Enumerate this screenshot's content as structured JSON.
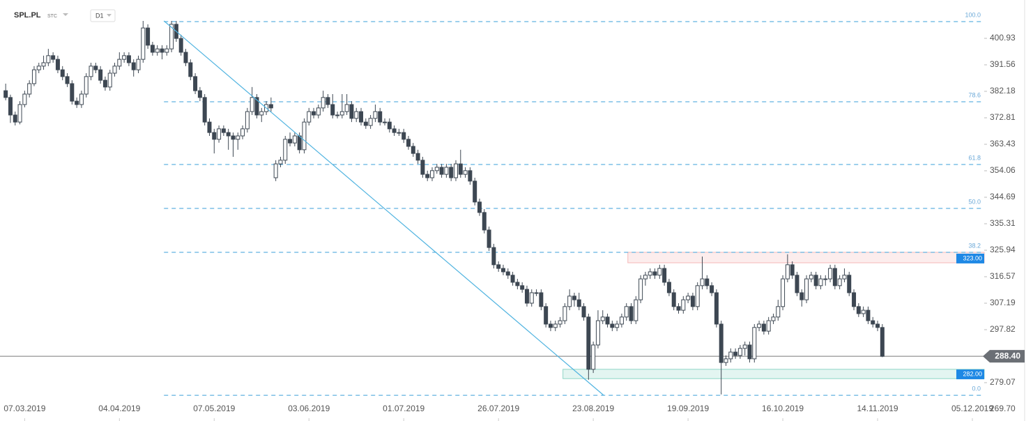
{
  "chart_data": {
    "type": "candlestick",
    "header": {
      "symbol": "SPL.PL",
      "market": "STC",
      "interval": "D1"
    },
    "up_color": "#ffffff",
    "down_color": "#3d4752",
    "xlim": [
      -1.2,
      206.5
    ],
    "xticks": [
      {
        "value": 4,
        "label": "07.03.2019"
      },
      {
        "value": 24,
        "label": "04.04.2019"
      },
      {
        "value": 44,
        "label": "07.05.2019"
      },
      {
        "value": 64,
        "label": "03.06.2019"
      },
      {
        "value": 84,
        "label": "01.07.2019"
      },
      {
        "value": 104,
        "label": "26.07.2019"
      },
      {
        "value": 124,
        "label": "23.08.2019"
      },
      {
        "value": 144,
        "label": "19.09.2019"
      },
      {
        "value": 164,
        "label": "16.10.2019"
      },
      {
        "value": 184,
        "label": "14.11.2019"
      },
      {
        "value": 204,
        "label": "05.12.2019"
      }
    ],
    "ylim": [
      265.5,
      414.5
    ],
    "yticks": [
      400.93,
      391.56,
      382.18,
      372.81,
      363.43,
      354.06,
      344.69,
      335.31,
      325.94,
      316.57,
      307.19,
      297.82,
      279.07,
      {
        "value": 269.7,
        "label": "269.70"
      }
    ],
    "current_price": {
      "value": 288.4,
      "label": "288.40"
    },
    "fib_levels": [
      {
        "label": "100.0",
        "value": 406.85
      },
      {
        "label": "78.6",
        "value": 378.48
      },
      {
        "label": "61.8",
        "value": 356.28
      },
      {
        "label": "50.0",
        "value": 340.73
      },
      {
        "label": "38.2",
        "value": 325.19
      },
      {
        "label": "0.0",
        "value": 274.6
      }
    ],
    "fib_x_start": 33.4,
    "zones": [
      {
        "label": "323.00",
        "value": 323,
        "top": 325.2,
        "bottom": 321.5,
        "x_start": 131.3,
        "color": "#f4b8b8"
      },
      {
        "label": "282.00",
        "value": 282,
        "top": 283.8,
        "bottom": 280.5,
        "x_start": 117.6,
        "color": "#8fd6c6"
      }
    ],
    "trendline": {
      "x": [
        33.4,
        126.2
      ],
      "y": [
        407.1,
        274.6
      ],
      "color": "#4fb3e0"
    },
    "candles": [
      [
        382.4,
        384.9,
        379.0,
        380.0
      ],
      [
        380.0,
        381.0,
        371.0,
        373.8
      ],
      [
        373.8,
        375.0,
        370.1,
        371.3
      ],
      [
        371.3,
        378.7,
        370.5,
        377.5
      ],
      [
        377.5,
        382.4,
        376.5,
        381.2
      ],
      [
        381.2,
        386.1,
        380.0,
        384.9
      ],
      [
        384.9,
        391.1,
        384.0,
        389.8
      ],
      [
        389.8,
        392.3,
        388.6,
        391.1
      ],
      [
        391.1,
        394.8,
        389.8,
        392.3
      ],
      [
        392.3,
        397.2,
        391.1,
        394.8
      ],
      [
        394.8,
        396.0,
        392.3,
        393.5
      ],
      [
        393.5,
        394.8,
        388.6,
        389.8
      ],
      [
        389.8,
        391.1,
        386.1,
        387.4
      ],
      [
        387.4,
        388.6,
        383.7,
        384.9
      ],
      [
        384.9,
        386.1,
        377.5,
        378.7
      ],
      [
        378.7,
        380.0,
        376.3,
        377.5
      ],
      [
        377.5,
        382.4,
        376.3,
        381.2
      ],
      [
        381.2,
        388.6,
        380.0,
        387.4
      ],
      [
        387.4,
        392.3,
        386.1,
        391.1
      ],
      [
        391.1,
        392.3,
        388.6,
        389.8
      ],
      [
        389.8,
        391.1,
        384.9,
        386.1
      ],
      [
        386.1,
        387.4,
        382.4,
        383.7
      ],
      [
        383.7,
        389.8,
        382.4,
        388.6
      ],
      [
        388.6,
        392.3,
        387.4,
        391.1
      ],
      [
        391.1,
        396.0,
        389.8,
        393.5
      ],
      [
        393.5,
        396.0,
        392.3,
        394.8
      ],
      [
        394.8,
        396.0,
        391.1,
        392.3
      ],
      [
        392.3,
        393.5,
        387.4,
        389.8
      ],
      [
        389.8,
        394.8,
        388.6,
        393.5
      ],
      [
        393.5,
        407.1,
        392.3,
        404.6
      ],
      [
        404.6,
        405.9,
        397.2,
        398.5
      ],
      [
        398.5,
        399.7,
        394.8,
        396.0
      ],
      [
        396.0,
        398.5,
        394.8,
        397.2
      ],
      [
        397.2,
        398.5,
        393.5,
        396.0
      ],
      [
        396.0,
        398.5,
        394.8,
        397.2
      ],
      [
        397.2,
        407.1,
        396.0,
        405.9
      ],
      [
        405.9,
        407.1,
        399.7,
        400.9
      ],
      [
        400.9,
        402.2,
        394.8,
        396.0
      ],
      [
        396.0,
        397.2,
        391.1,
        392.3
      ],
      [
        392.3,
        393.5,
        386.1,
        387.4
      ],
      [
        387.4,
        388.6,
        381.2,
        382.4
      ],
      [
        382.4,
        383.7,
        378.7,
        380.0
      ],
      [
        380.0,
        381.2,
        370.1,
        371.3
      ],
      [
        371.3,
        372.6,
        366.4,
        367.6
      ],
      [
        367.6,
        368.9,
        360.2,
        365.2
      ],
      [
        365.2,
        370.1,
        364.0,
        368.9
      ],
      [
        368.9,
        370.1,
        366.4,
        367.6
      ],
      [
        367.6,
        368.9,
        361.5,
        366.4
      ],
      [
        366.4,
        367.6,
        359.0,
        365.2
      ],
      [
        365.2,
        367.6,
        361.5,
        366.4
      ],
      [
        366.4,
        370.1,
        365.2,
        368.9
      ],
      [
        368.9,
        376.3,
        367.6,
        375.0
      ],
      [
        375.0,
        383.7,
        373.8,
        380.0
      ],
      [
        380.0,
        381.2,
        372.6,
        373.8
      ],
      [
        373.8,
        376.3,
        371.3,
        375.0
      ],
      [
        375.0,
        378.7,
        373.8,
        377.5
      ],
      [
        377.5,
        380.0,
        375.0,
        376.3
      ],
      [
        351.6,
        357.8,
        350.4,
        356.5
      ],
      [
        356.5,
        359.0,
        355.3,
        357.8
      ],
      [
        357.8,
        366.4,
        356.5,
        365.2
      ],
      [
        365.2,
        367.6,
        362.7,
        363.9
      ],
      [
        363.9,
        367.6,
        362.7,
        366.4
      ],
      [
        366.4,
        367.6,
        360.2,
        361.5
      ],
      [
        361.5,
        372.6,
        360.2,
        371.3
      ],
      [
        371.3,
        376.3,
        370.1,
        375.0
      ],
      [
        375.0,
        376.3,
        372.6,
        373.8
      ],
      [
        373.8,
        377.5,
        372.6,
        376.3
      ],
      [
        376.3,
        382.4,
        375.0,
        380.0
      ],
      [
        380.0,
        381.2,
        376.3,
        377.5
      ],
      [
        377.5,
        381.2,
        372.6,
        373.8
      ],
      [
        373.8,
        375.0,
        372.6,
        373.8
      ],
      [
        373.8,
        381.2,
        372.6,
        375.0
      ],
      [
        375.0,
        381.2,
        373.8,
        377.5
      ],
      [
        377.5,
        378.7,
        371.3,
        372.6
      ],
      [
        372.6,
        376.3,
        371.3,
        375.0
      ],
      [
        375.0,
        376.3,
        370.1,
        371.3
      ],
      [
        371.3,
        372.6,
        368.9,
        370.1
      ],
      [
        370.1,
        373.8,
        368.9,
        372.6
      ],
      [
        372.6,
        377.5,
        371.3,
        375.0
      ],
      [
        375.0,
        376.3,
        370.1,
        371.3
      ],
      [
        371.3,
        372.6,
        370.1,
        371.3
      ],
      [
        371.3,
        372.6,
        367.6,
        368.9
      ],
      [
        368.9,
        370.1,
        366.4,
        367.6
      ],
      [
        367.6,
        368.9,
        366.4,
        367.6
      ],
      [
        367.6,
        368.9,
        363.9,
        365.2
      ],
      [
        365.2,
        366.4,
        361.5,
        362.7
      ],
      [
        362.7,
        363.9,
        359.0,
        360.2
      ],
      [
        360.2,
        361.5,
        356.5,
        357.8
      ],
      [
        357.8,
        359.0,
        351.6,
        352.8
      ],
      [
        352.8,
        354.1,
        350.4,
        351.6
      ],
      [
        351.6,
        355.3,
        350.4,
        354.1
      ],
      [
        354.1,
        356.5,
        353.0,
        355.3
      ],
      [
        355.3,
        356.5,
        351.6,
        352.8
      ],
      [
        352.8,
        356.5,
        351.6,
        355.3
      ],
      [
        355.3,
        356.5,
        350.4,
        351.6
      ],
      [
        351.6,
        357.8,
        350.4,
        356.5
      ],
      [
        356.5,
        361.5,
        351.6,
        352.8
      ],
      [
        352.8,
        355.3,
        351.6,
        354.1
      ],
      [
        354.1,
        355.3,
        349.1,
        350.4
      ],
      [
        350.4,
        351.6,
        341.8,
        343.0
      ],
      [
        343.0,
        344.2,
        338.1,
        339.3
      ],
      [
        339.3,
        340.5,
        331.9,
        333.1
      ],
      [
        333.1,
        334.3,
        325.7,
        326.9
      ],
      [
        326.9,
        328.2,
        319.5,
        320.8
      ],
      [
        320.8,
        322.0,
        318.3,
        319.5
      ],
      [
        319.5,
        320.8,
        317.1,
        318.3
      ],
      [
        318.3,
        319.5,
        315.8,
        317.1
      ],
      [
        317.1,
        318.3,
        313.4,
        314.6
      ],
      [
        314.6,
        315.8,
        312.1,
        313.4
      ],
      [
        313.4,
        314.6,
        310.9,
        312.1
      ],
      [
        312.1,
        313.4,
        306.0,
        307.2
      ],
      [
        307.2,
        312.1,
        306.0,
        310.9
      ],
      [
        310.9,
        312.1,
        309.7,
        310.9
      ],
      [
        310.9,
        312.1,
        304.7,
        306.0
      ],
      [
        306.0,
        307.2,
        298.6,
        299.8
      ],
      [
        299.8,
        301.0,
        297.3,
        298.6
      ],
      [
        298.6,
        301.0,
        297.3,
        299.8
      ],
      [
        299.8,
        302.3,
        298.6,
        301.0
      ],
      [
        301.0,
        307.2,
        299.8,
        306.0
      ],
      [
        306.0,
        312.1,
        304.7,
        309.7
      ],
      [
        309.7,
        310.9,
        306.0,
        308.4
      ],
      [
        308.4,
        310.9,
        304.7,
        306.0
      ],
      [
        306.0,
        307.2,
        301.0,
        302.3
      ],
      [
        302.3,
        303.5,
        280.1,
        283.8
      ],
      [
        283.8,
        293.6,
        282.5,
        292.4
      ],
      [
        292.4,
        304.7,
        291.2,
        301.0
      ],
      [
        301.0,
        304.7,
        299.8,
        302.3
      ],
      [
        302.3,
        303.5,
        298.6,
        299.8
      ],
      [
        299.8,
        301.0,
        297.3,
        298.6
      ],
      [
        298.6,
        301.0,
        297.3,
        299.8
      ],
      [
        299.8,
        303.5,
        298.6,
        302.3
      ],
      [
        302.3,
        307.2,
        301.0,
        306.0
      ],
      [
        306.0,
        307.2,
        299.8,
        301.0
      ],
      [
        301.0,
        309.7,
        299.8,
        308.4
      ],
      [
        308.4,
        317.1,
        307.2,
        315.8
      ],
      [
        315.8,
        318.3,
        313.4,
        317.1
      ],
      [
        317.1,
        319.5,
        315.8,
        318.3
      ],
      [
        318.3,
        319.5,
        315.8,
        317.1
      ],
      [
        317.1,
        320.8,
        315.8,
        319.5
      ],
      [
        319.5,
        320.8,
        313.4,
        314.6
      ],
      [
        314.6,
        315.8,
        309.7,
        310.9
      ],
      [
        310.9,
        312.1,
        304.7,
        306.0
      ],
      [
        306.0,
        307.2,
        303.5,
        304.7
      ],
      [
        304.7,
        309.7,
        303.5,
        308.4
      ],
      [
        308.4,
        310.9,
        307.2,
        309.7
      ],
      [
        309.7,
        310.9,
        304.7,
        306.0
      ],
      [
        306.0,
        314.6,
        304.7,
        313.4
      ],
      [
        313.4,
        323.7,
        312.1,
        315.8
      ],
      [
        315.8,
        317.1,
        312.1,
        313.4
      ],
      [
        313.4,
        314.6,
        309.7,
        310.9
      ],
      [
        310.9,
        312.1,
        298.6,
        299.8
      ],
      [
        299.8,
        301.0,
        274.9,
        286.2
      ],
      [
        286.2,
        288.7,
        285.0,
        287.5
      ],
      [
        287.5,
        291.2,
        286.2,
        289.9
      ],
      [
        289.9,
        291.2,
        287.5,
        288.7
      ],
      [
        288.7,
        292.4,
        287.5,
        291.2
      ],
      [
        291.2,
        293.6,
        288.7,
        292.4
      ],
      [
        292.4,
        293.6,
        286.2,
        287.5
      ],
      [
        287.5,
        299.8,
        286.2,
        298.6
      ],
      [
        298.6,
        301.0,
        297.3,
        299.8
      ],
      [
        299.8,
        301.0,
        296.1,
        297.3
      ],
      [
        297.3,
        302.3,
        296.1,
        301.0
      ],
      [
        301.0,
        303.5,
        299.8,
        302.3
      ],
      [
        302.3,
        308.4,
        301.0,
        306.0
      ],
      [
        306.0,
        317.1,
        304.7,
        315.8
      ],
      [
        315.8,
        324.5,
        314.6,
        320.8
      ],
      [
        320.8,
        322.0,
        315.8,
        317.1
      ],
      [
        317.1,
        318.3,
        309.7,
        310.9
      ],
      [
        310.9,
        312.1,
        306.0,
        308.4
      ],
      [
        308.4,
        317.1,
        307.2,
        315.8
      ],
      [
        315.8,
        318.3,
        314.6,
        317.1
      ],
      [
        317.1,
        318.3,
        312.1,
        313.4
      ],
      [
        313.4,
        317.1,
        312.1,
        315.8
      ],
      [
        315.8,
        317.1,
        313.4,
        315.8
      ],
      [
        315.8,
        320.8,
        314.6,
        319.5
      ],
      [
        319.5,
        320.8,
        312.1,
        313.4
      ],
      [
        313.4,
        317.1,
        312.1,
        315.8
      ],
      [
        315.8,
        319.5,
        314.6,
        317.1
      ],
      [
        317.1,
        318.3,
        309.7,
        310.9
      ],
      [
        310.9,
        312.1,
        304.7,
        306.0
      ],
      [
        306.0,
        307.2,
        302.3,
        303.5
      ],
      [
        303.5,
        306.0,
        302.3,
        304.7
      ],
      [
        304.7,
        306.0,
        299.8,
        301.0
      ],
      [
        301.0,
        302.3,
        298.6,
        299.8
      ],
      [
        299.8,
        301.0,
        297.3,
        298.6
      ],
      [
        298.6,
        299.8,
        288.1,
        288.4
      ]
    ]
  }
}
